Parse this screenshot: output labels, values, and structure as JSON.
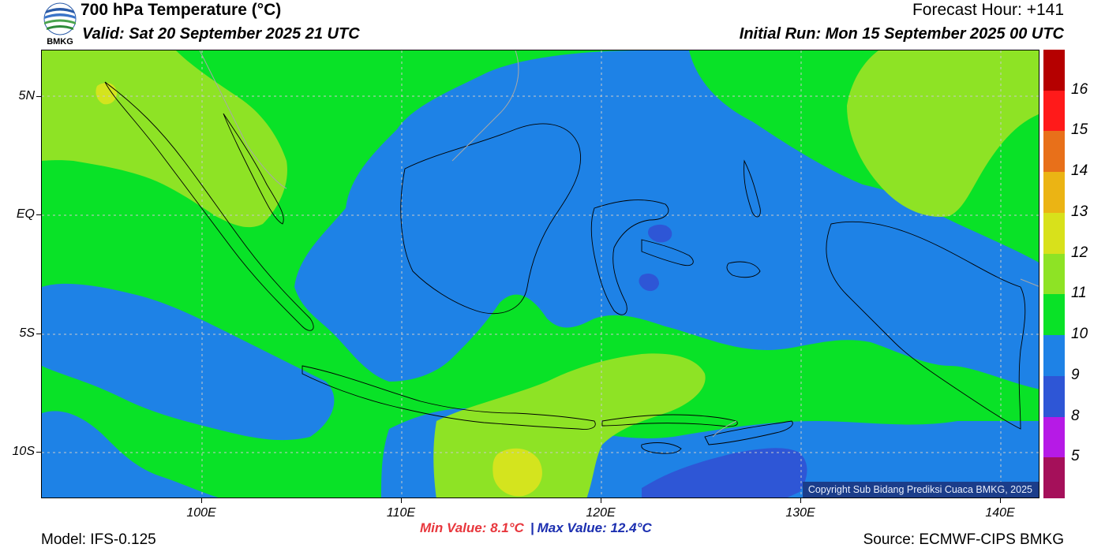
{
  "header": {
    "title": "700 hPa Temperature (°C)",
    "valid": "Valid: Sat 20 September 2025 21 UTC",
    "forecast_hour": "Forecast Hour: +141",
    "initial_run": "Initial Run: Mon 15 September 2025 00 UTC",
    "logo_text": "BMKG"
  },
  "map": {
    "lat_labels": [
      "5N",
      "EQ",
      "5S",
      "10S"
    ],
    "lon_labels": [
      "100E",
      "110E",
      "120E",
      "130E",
      "140E"
    ],
    "copyright": "Copyright Sub Bidang Prediksi Cuaca BMKG, 2025",
    "field_colors": {
      "9": "#1e82e6",
      "10": "#09e227",
      "11": "#8ee325",
      "12": "#d4e41e",
      "8": "#2e56d6",
      "grid": "#c9c9c9",
      "coast": "#000000",
      "border_gray": "#a8a8a8"
    }
  },
  "colorbar": {
    "labels": [
      "16",
      "15",
      "14",
      "13",
      "12",
      "11",
      "10",
      "9",
      "8",
      "5"
    ],
    "colors": [
      "#b50000",
      "#ff1a1a",
      "#e8701a",
      "#ebb414",
      "#d8e11b",
      "#8ee325",
      "#09e227",
      "#1e82e6",
      "#2e56d6",
      "#b61ae6",
      "#a5105a"
    ]
  },
  "footer": {
    "model": "Model: IFS-0.125",
    "min_value": "Min Value: 8.1°C",
    "separator": "|",
    "max_value": "Max Value: 12.4°C",
    "source": "Source: ECMWF-CIPS BMKG"
  }
}
